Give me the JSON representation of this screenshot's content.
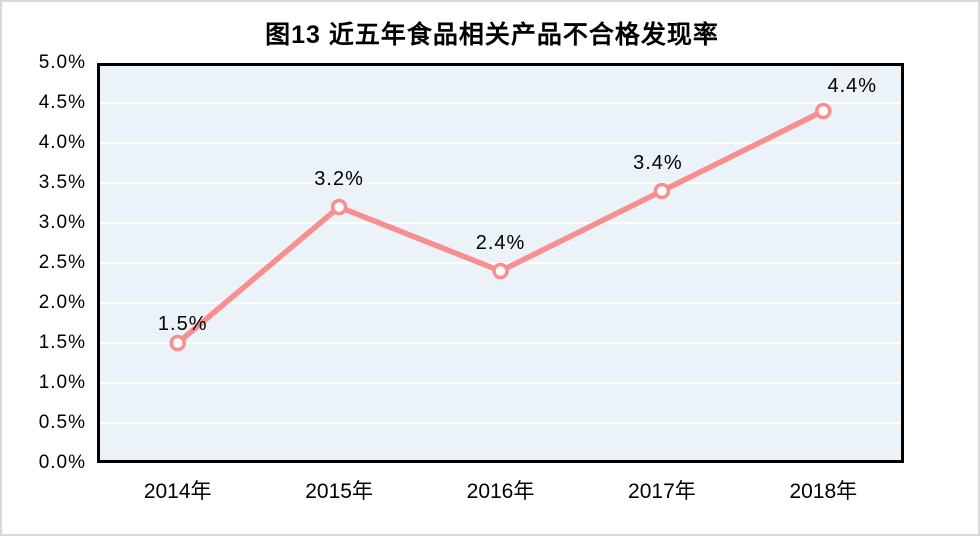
{
  "page": {
    "background_color": "#FFFFFF",
    "frame_border_color": "#D9D9D9"
  },
  "chart_data": {
    "type": "line",
    "title": "图13 近五年食品相关产品不合格发现率",
    "categories": [
      "2014年",
      "2015年",
      "2016年",
      "2017年",
      "2018年"
    ],
    "values": [
      1.5,
      3.2,
      2.4,
      3.4,
      4.4
    ],
    "data_labels": [
      "1.5%",
      "3.2%",
      "2.4%",
      "3.4%",
      "4.4%"
    ],
    "xlabel": "",
    "ylabel": "",
    "ylim": [
      0,
      5
    ],
    "ytick_step": 0.5,
    "ytick_labels": [
      "0.0%",
      "0.5%",
      "1.0%",
      "1.5%",
      "2.0%",
      "2.5%",
      "3.0%",
      "3.5%",
      "4.0%",
      "4.5%",
      "5.0%"
    ],
    "grid": true,
    "legend": "none",
    "colors": {
      "line": "#F78F8F",
      "marker_fill": "#FFFFFF",
      "marker_stroke": "#F78F8F",
      "plot_background": "#EBF2F8",
      "gridline": "#FFFFFF",
      "axis_border": "#000000",
      "text": "#000000"
    }
  }
}
